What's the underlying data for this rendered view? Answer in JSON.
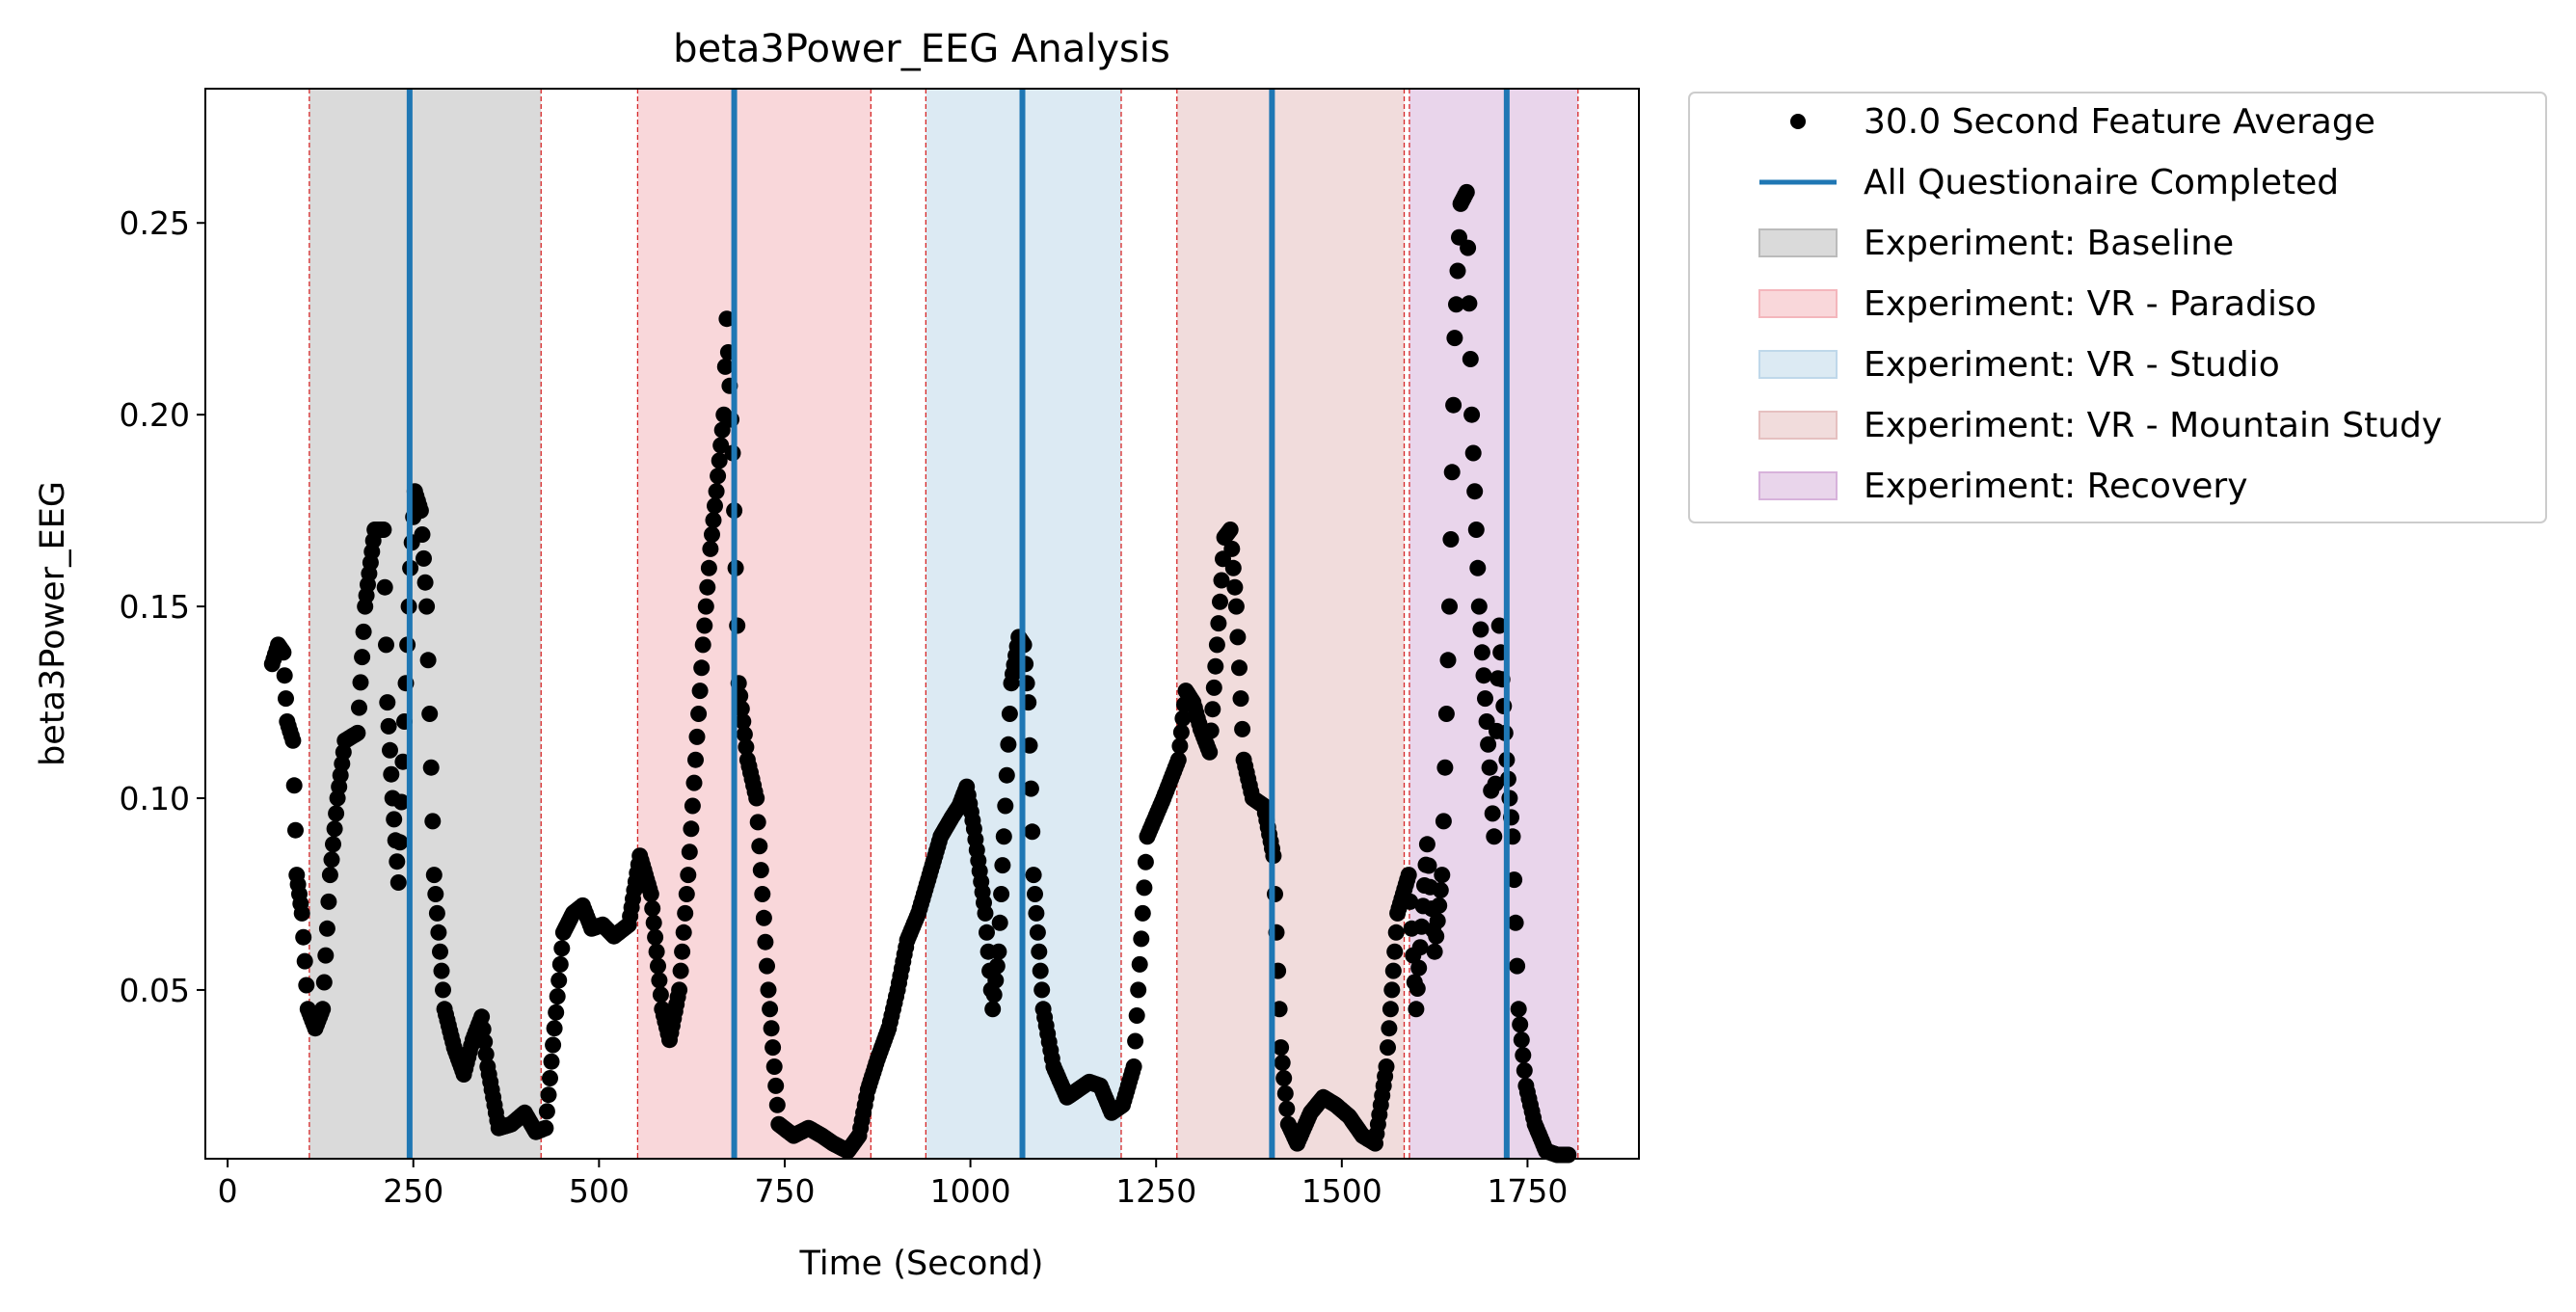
{
  "chart_data": {
    "type": "scatter",
    "title": "beta3Power_EEG Analysis",
    "xlabel": "Time (Second)",
    "ylabel": "beta3Power_EEG",
    "xlim": [
      -30,
      1900
    ],
    "ylim": [
      0.006,
      0.285
    ],
    "xticks": [
      0,
      250,
      500,
      750,
      1000,
      1250,
      1500,
      1750
    ],
    "yticks": [
      0.05,
      0.1,
      0.15,
      0.2,
      0.25
    ],
    "ytick_labels": [
      "0.05",
      "0.10",
      "0.15",
      "0.20",
      "0.25"
    ],
    "grid": false,
    "legend_position": "outside-top-right",
    "point_series": {
      "name": "30.0 Second Feature Average",
      "color": "#000000",
      "keypoints": [
        [
          60,
          0.135
        ],
        [
          68,
          0.14
        ],
        [
          75,
          0.138
        ],
        [
          80,
          0.12
        ],
        [
          88,
          0.115
        ],
        [
          93,
          0.08
        ],
        [
          100,
          0.07
        ],
        [
          108,
          0.045
        ],
        [
          118,
          0.04
        ],
        [
          128,
          0.045
        ],
        [
          138,
          0.08
        ],
        [
          148,
          0.1
        ],
        [
          158,
          0.115
        ],
        [
          175,
          0.117
        ],
        [
          185,
          0.15
        ],
        [
          198,
          0.17
        ],
        [
          210,
          0.17
        ],
        [
          215,
          0.125
        ],
        [
          222,
          0.1
        ],
        [
          230,
          0.078
        ],
        [
          238,
          0.12
        ],
        [
          246,
          0.16
        ],
        [
          252,
          0.18
        ],
        [
          260,
          0.175
        ],
        [
          268,
          0.15
        ],
        [
          278,
          0.08
        ],
        [
          292,
          0.045
        ],
        [
          305,
          0.035
        ],
        [
          318,
          0.028
        ],
        [
          330,
          0.037
        ],
        [
          342,
          0.043
        ],
        [
          350,
          0.03
        ],
        [
          365,
          0.014
        ],
        [
          382,
          0.015
        ],
        [
          400,
          0.018
        ],
        [
          415,
          0.013
        ],
        [
          428,
          0.014
        ],
        [
          440,
          0.04
        ],
        [
          452,
          0.065
        ],
        [
          465,
          0.07
        ],
        [
          478,
          0.072
        ],
        [
          490,
          0.066
        ],
        [
          505,
          0.067
        ],
        [
          520,
          0.064
        ],
        [
          540,
          0.067
        ],
        [
          555,
          0.085
        ],
        [
          570,
          0.075
        ],
        [
          585,
          0.045
        ],
        [
          595,
          0.037
        ],
        [
          608,
          0.05
        ],
        [
          620,
          0.08
        ],
        [
          630,
          0.11
        ],
        [
          640,
          0.14
        ],
        [
          650,
          0.165
        ],
        [
          658,
          0.18
        ],
        [
          668,
          0.2
        ],
        [
          672,
          0.225
        ],
        [
          680,
          0.19
        ],
        [
          688,
          0.13
        ],
        [
          700,
          0.11
        ],
        [
          712,
          0.1
        ],
        [
          728,
          0.05
        ],
        [
          742,
          0.015
        ],
        [
          762,
          0.012
        ],
        [
          782,
          0.014
        ],
        [
          800,
          0.012
        ],
        [
          815,
          0.01
        ],
        [
          835,
          0.008
        ],
        [
          850,
          0.012
        ],
        [
          862,
          0.024
        ],
        [
          875,
          0.032
        ],
        [
          890,
          0.04
        ],
        [
          902,
          0.05
        ],
        [
          915,
          0.063
        ],
        [
          930,
          0.07
        ],
        [
          945,
          0.08
        ],
        [
          960,
          0.09
        ],
        [
          975,
          0.095
        ],
        [
          985,
          0.098
        ],
        [
          995,
          0.103
        ],
        [
          1005,
          0.092
        ],
        [
          1020,
          0.07
        ],
        [
          1030,
          0.045
        ],
        [
          1038,
          0.06
        ],
        [
          1045,
          0.09
        ],
        [
          1055,
          0.13
        ],
        [
          1065,
          0.142
        ],
        [
          1072,
          0.14
        ],
        [
          1078,
          0.125
        ],
        [
          1085,
          0.08
        ],
        [
          1098,
          0.045
        ],
        [
          1112,
          0.03
        ],
        [
          1130,
          0.022
        ],
        [
          1145,
          0.024
        ],
        [
          1160,
          0.026
        ],
        [
          1175,
          0.025
        ],
        [
          1190,
          0.018
        ],
        [
          1205,
          0.02
        ],
        [
          1220,
          0.03
        ],
        [
          1238,
          0.09
        ],
        [
          1260,
          0.1
        ],
        [
          1280,
          0.11
        ],
        [
          1290,
          0.128
        ],
        [
          1300,
          0.125
        ],
        [
          1310,
          0.118
        ],
        [
          1322,
          0.112
        ],
        [
          1332,
          0.14
        ],
        [
          1342,
          0.168
        ],
        [
          1350,
          0.17
        ],
        [
          1358,
          0.15
        ],
        [
          1368,
          0.11
        ],
        [
          1380,
          0.1
        ],
        [
          1395,
          0.098
        ],
        [
          1408,
          0.085
        ],
        [
          1418,
          0.035
        ],
        [
          1428,
          0.015
        ],
        [
          1440,
          0.01
        ],
        [
          1458,
          0.018
        ],
        [
          1475,
          0.022
        ],
        [
          1492,
          0.02
        ],
        [
          1510,
          0.017
        ],
        [
          1528,
          0.012
        ],
        [
          1545,
          0.01
        ],
        [
          1560,
          0.03
        ],
        [
          1575,
          0.07
        ],
        [
          1590,
          0.08
        ],
        [
          1600,
          0.045
        ],
        [
          1615,
          0.088
        ],
        [
          1625,
          0.06
        ],
        [
          1635,
          0.08
        ],
        [
          1645,
          0.15
        ],
        [
          1652,
          0.22
        ],
        [
          1660,
          0.255
        ],
        [
          1668,
          0.258
        ],
        [
          1675,
          0.2
        ],
        [
          1685,
          0.15
        ],
        [
          1695,
          0.12
        ],
        [
          1705,
          0.09
        ],
        [
          1712,
          0.145
        ],
        [
          1722,
          0.11
        ],
        [
          1730,
          0.09
        ],
        [
          1738,
          0.045
        ],
        [
          1748,
          0.025
        ],
        [
          1760,
          0.015
        ],
        [
          1775,
          0.008
        ],
        [
          1790,
          0.007
        ],
        [
          1805,
          0.007
        ]
      ]
    },
    "questionnaire_lines": {
      "name": "All Questionaire Completed",
      "color": "#1f77b4",
      "x": [
        245,
        682,
        1070,
        1406,
        1722
      ]
    },
    "experiment_spans": [
      {
        "name": "Experiment: Baseline",
        "start": 110,
        "end": 422,
        "color": "#bbbbbb"
      },
      {
        "name": "Experiment: VR - Paradiso",
        "start": 552,
        "end": 866,
        "color": "#f4b6bc"
      },
      {
        "name": "Experiment: VR - Studio",
        "start": 940,
        "end": 1203,
        "color": "#bfd8ea"
      },
      {
        "name": "Experiment: VR - Mountain Study",
        "start": 1278,
        "end": 1584,
        "color": "#e5c0c0"
      },
      {
        "name": "Experiment: Recovery",
        "start": 1591,
        "end": 1818,
        "color": "#d7b2db"
      }
    ]
  }
}
